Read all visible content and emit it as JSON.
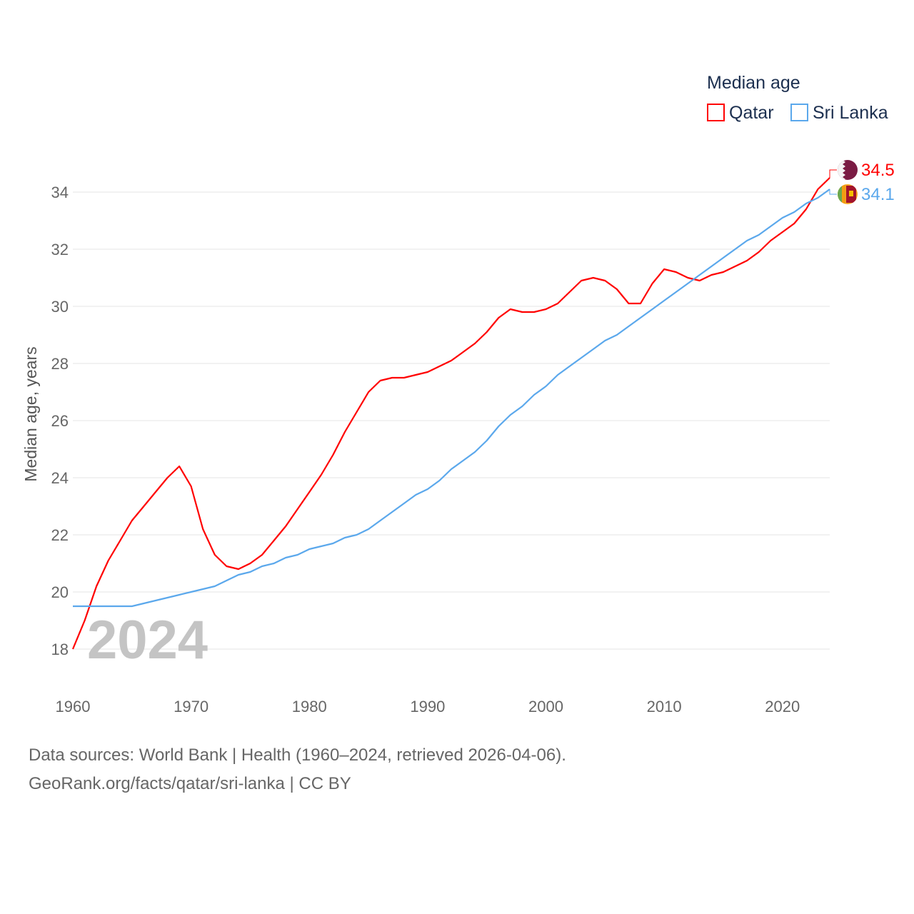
{
  "chart_data": {
    "type": "line",
    "legend_title": "Median age",
    "legend_position": "top-right",
    "ylabel": "Median age, years",
    "xlabel": "",
    "year_watermark": "2024",
    "xlim": [
      1960,
      2024
    ],
    "ylim": [
      17,
      35
    ],
    "grid": true,
    "x_ticks": [
      "1960",
      "1970",
      "1980",
      "1990",
      "2000",
      "2010",
      "2020"
    ],
    "y_ticks": [
      "18",
      "20",
      "22",
      "24",
      "26",
      "28",
      "30",
      "32",
      "34"
    ],
    "x": [
      1960,
      1961,
      1962,
      1963,
      1964,
      1965,
      1966,
      1967,
      1968,
      1969,
      1970,
      1971,
      1972,
      1973,
      1974,
      1975,
      1976,
      1977,
      1978,
      1979,
      1980,
      1981,
      1982,
      1983,
      1984,
      1985,
      1986,
      1987,
      1988,
      1989,
      1990,
      1991,
      1992,
      1993,
      1994,
      1995,
      1996,
      1997,
      1998,
      1999,
      2000,
      2001,
      2002,
      2003,
      2004,
      2005,
      2006,
      2007,
      2008,
      2009,
      2010,
      2011,
      2012,
      2013,
      2014,
      2015,
      2016,
      2017,
      2018,
      2019,
      2020,
      2021,
      2022,
      2023,
      2024
    ],
    "series": [
      {
        "name": "Qatar",
        "color": "#ff0000",
        "end_label": "34.5",
        "flag": "qatar-flag",
        "values": [
          18.0,
          19.0,
          20.2,
          21.1,
          21.8,
          22.5,
          23.0,
          23.5,
          24.0,
          24.4,
          23.7,
          22.2,
          21.3,
          20.9,
          20.8,
          21.0,
          21.3,
          21.8,
          22.3,
          22.9,
          23.5,
          24.1,
          24.8,
          25.6,
          26.3,
          27.0,
          27.4,
          27.5,
          27.5,
          27.6,
          27.7,
          27.9,
          28.1,
          28.4,
          28.7,
          29.1,
          29.6,
          29.9,
          29.8,
          29.8,
          29.9,
          30.1,
          30.5,
          30.9,
          31.0,
          30.9,
          30.6,
          30.1,
          30.1,
          30.8,
          31.3,
          31.2,
          31.0,
          30.9,
          31.1,
          31.2,
          31.4,
          31.6,
          31.9,
          32.3,
          32.6,
          32.9,
          33.4,
          34.1,
          34.5
        ]
      },
      {
        "name": "Sri Lanka",
        "color": "#5ba8ec",
        "end_label": "34.1",
        "flag": "sri-lanka-flag",
        "values": [
          19.5,
          19.5,
          19.5,
          19.5,
          19.5,
          19.5,
          19.6,
          19.7,
          19.8,
          19.9,
          20.0,
          20.1,
          20.2,
          20.4,
          20.6,
          20.7,
          20.9,
          21.0,
          21.2,
          21.3,
          21.5,
          21.6,
          21.7,
          21.9,
          22.0,
          22.2,
          22.5,
          22.8,
          23.1,
          23.4,
          23.6,
          23.9,
          24.3,
          24.6,
          24.9,
          25.3,
          25.8,
          26.2,
          26.5,
          26.9,
          27.2,
          27.6,
          27.9,
          28.2,
          28.5,
          28.8,
          29.0,
          29.3,
          29.6,
          29.9,
          30.2,
          30.5,
          30.8,
          31.1,
          31.4,
          31.7,
          32.0,
          32.3,
          32.5,
          32.8,
          33.1,
          33.3,
          33.6,
          33.8,
          34.1
        ]
      }
    ]
  },
  "footer": {
    "line1": "Data sources: World Bank | Health (1960–2024, retrieved 2026-04-06).",
    "line2": "GeoRank.org/facts/qatar/sri-lanka | CC BY"
  }
}
